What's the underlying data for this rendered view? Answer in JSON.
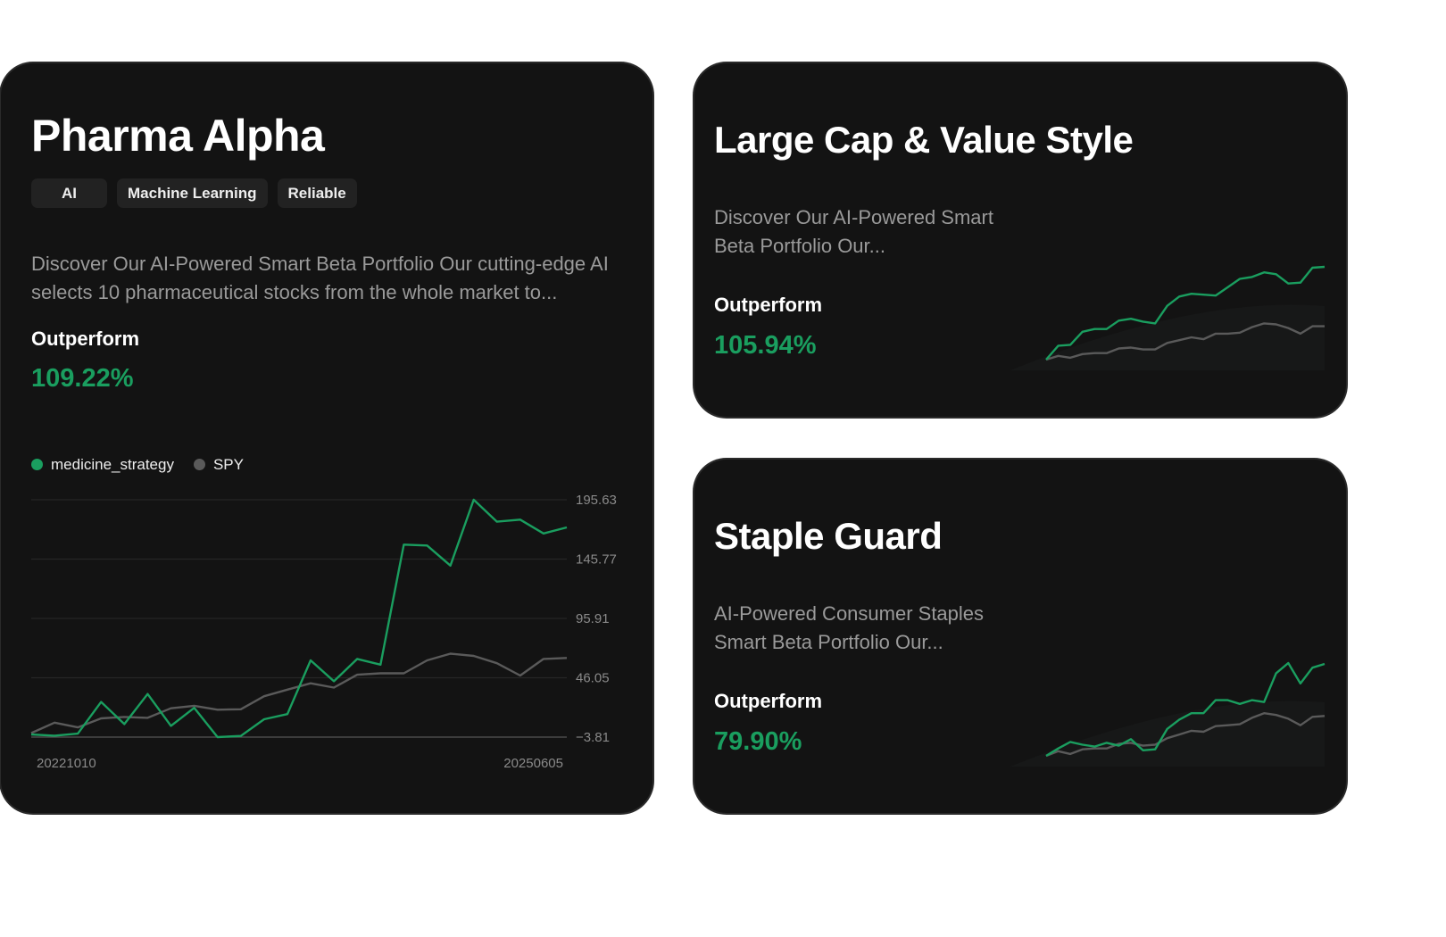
{
  "colors": {
    "strategy": "#1a9e5f",
    "benchmark": "#5a5a5a",
    "card_bg": "#131313"
  },
  "cards": [
    {
      "title": "Pharma Alpha",
      "tags": [
        "AI",
        "Machine Learning",
        "Reliable"
      ],
      "description": "Discover Our AI-Powered Smart Beta Portfolio Our cutting-edge AI selects 10 pharmaceutical stocks from the whole market to...",
      "outperform_label": "Outperform",
      "outperform_value": "109.22%"
    },
    {
      "title": "Large Cap & Value Style",
      "description": "Discover Our AI-Powered Smart Beta Portfolio Our...",
      "outperform_label": "Outperform",
      "outperform_value": "105.94%"
    },
    {
      "title": "Staple Guard",
      "description": "AI-Powered Consumer Staples Smart Beta Portfolio Our...",
      "outperform_label": "Outperform",
      "outperform_value": "79.90%"
    }
  ],
  "chart_data": [
    {
      "type": "line",
      "legend": [
        "medicine_strategy",
        "SPY"
      ],
      "legend_position": "top-left",
      "x_tick_labels": [
        "20221010",
        "20250605"
      ],
      "y_ticks": [
        "195.63",
        "145.77",
        "95.91",
        "46.05",
        "−3.81"
      ],
      "ylim": [
        -3.81,
        195.63
      ],
      "grid": true,
      "series": [
        {
          "name": "medicine_strategy",
          "values": [
            -1.6,
            -2.6,
            -0.9,
            25.7,
            7.1,
            32.4,
            5.6,
            20.8,
            -3.8,
            -2.8,
            11.2,
            15.5,
            60.7,
            43.1,
            61.9,
            57.1,
            157.9,
            157.2,
            140.3,
            195.6,
            177.2,
            178.9,
            167.3,
            172.4
          ]
        },
        {
          "name": "SPY",
          "values": [
            -0.4,
            8.3,
            4.4,
            11.9,
            13.1,
            12.4,
            20.4,
            22.5,
            19.2,
            19.6,
            30.5,
            36.1,
            41.4,
            37.8,
            48.6,
            49.8,
            49.8,
            60.7,
            66.3,
            64.4,
            58.3,
            47.9,
            61.9,
            62.7
          ]
        }
      ]
    },
    {
      "type": "line",
      "card": "Large Cap & Value Style",
      "axes": "hidden",
      "series": [
        {
          "values": [
            0,
            15,
            16,
            30,
            33,
            33,
            42,
            44,
            41,
            39,
            58,
            68,
            71,
            70,
            69,
            78,
            87,
            89,
            94,
            92,
            82,
            83,
            99,
            100
          ]
        },
        {
          "values": [
            0,
            4,
            2,
            6,
            7,
            7,
            12,
            13,
            11,
            11,
            18,
            21,
            24,
            22,
            28,
            28,
            29,
            35,
            39,
            38,
            34,
            28,
            36,
            36
          ]
        }
      ]
    },
    {
      "type": "line",
      "card": "Staple Guard",
      "axes": "hidden",
      "series": [
        {
          "values": [
            0,
            8,
            15,
            12,
            10,
            14,
            11,
            18,
            6,
            7,
            29,
            39,
            46,
            46,
            60,
            60,
            56,
            60,
            58,
            89,
            100,
            78,
            95,
            99
          ]
        },
        {
          "values": [
            0,
            5,
            2,
            7,
            8,
            8,
            13,
            14,
            11,
            12,
            19,
            23,
            27,
            26,
            32,
            33,
            34,
            41,
            46,
            44,
            40,
            33,
            42,
            43
          ]
        }
      ]
    }
  ]
}
